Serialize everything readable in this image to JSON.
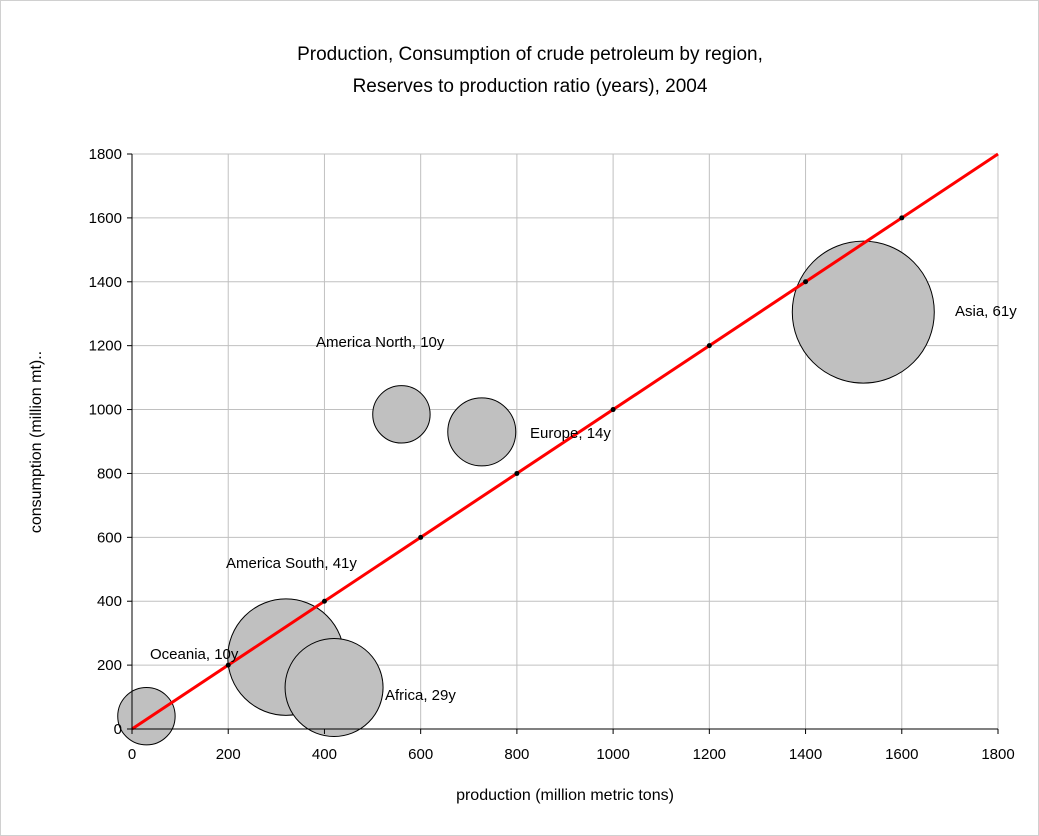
{
  "chart_data": {
    "type": "scatter",
    "title": "Production, Consumption of crude petroleum by region,",
    "subtitle": "Reserves to production ratio (years), 2004",
    "xlabel": "production (million metric tons)",
    "ylabel": "consumption (million mt)..",
    "xlim": [
      0,
      1800
    ],
    "ylim": [
      0,
      1800
    ],
    "x_ticks": [
      0,
      200,
      400,
      600,
      800,
      1000,
      1200,
      1400,
      1600,
      1800
    ],
    "y_ticks": [
      0,
      200,
      400,
      600,
      800,
      1000,
      1200,
      1400,
      1600,
      1800
    ],
    "grid": true,
    "bubbles": [
      {
        "label": "Oceania, 10y",
        "x": 30,
        "y": 40,
        "r_years": 10
      },
      {
        "label": "Africa, 29y",
        "x": 420,
        "y": 130,
        "r_years": 29
      },
      {
        "label": "America South, 41y",
        "x": 320,
        "y": 225,
        "r_years": 41
      },
      {
        "label": "America North, 10y",
        "x": 560,
        "y": 985,
        "r_years": 10
      },
      {
        "label": "Europe, 14y",
        "x": 727,
        "y": 930,
        "r_years": 14
      },
      {
        "label": "Asia, 61y",
        "x": 1520,
        "y": 1305,
        "r_years": 61
      }
    ],
    "reference_line": {
      "x": [
        0,
        1800
      ],
      "y": [
        0,
        1800
      ]
    },
    "reference_points": {
      "x": [
        200,
        400,
        600,
        800,
        1000,
        1200,
        1400,
        1600
      ],
      "y": [
        200,
        400,
        600,
        800,
        1000,
        1200,
        1400,
        1600
      ]
    },
    "colors": {
      "bubble_fill": "#c0c0c0",
      "bubble_stroke": "#000000",
      "line": "#ff0000",
      "grid": "#c0c0c0"
    }
  }
}
